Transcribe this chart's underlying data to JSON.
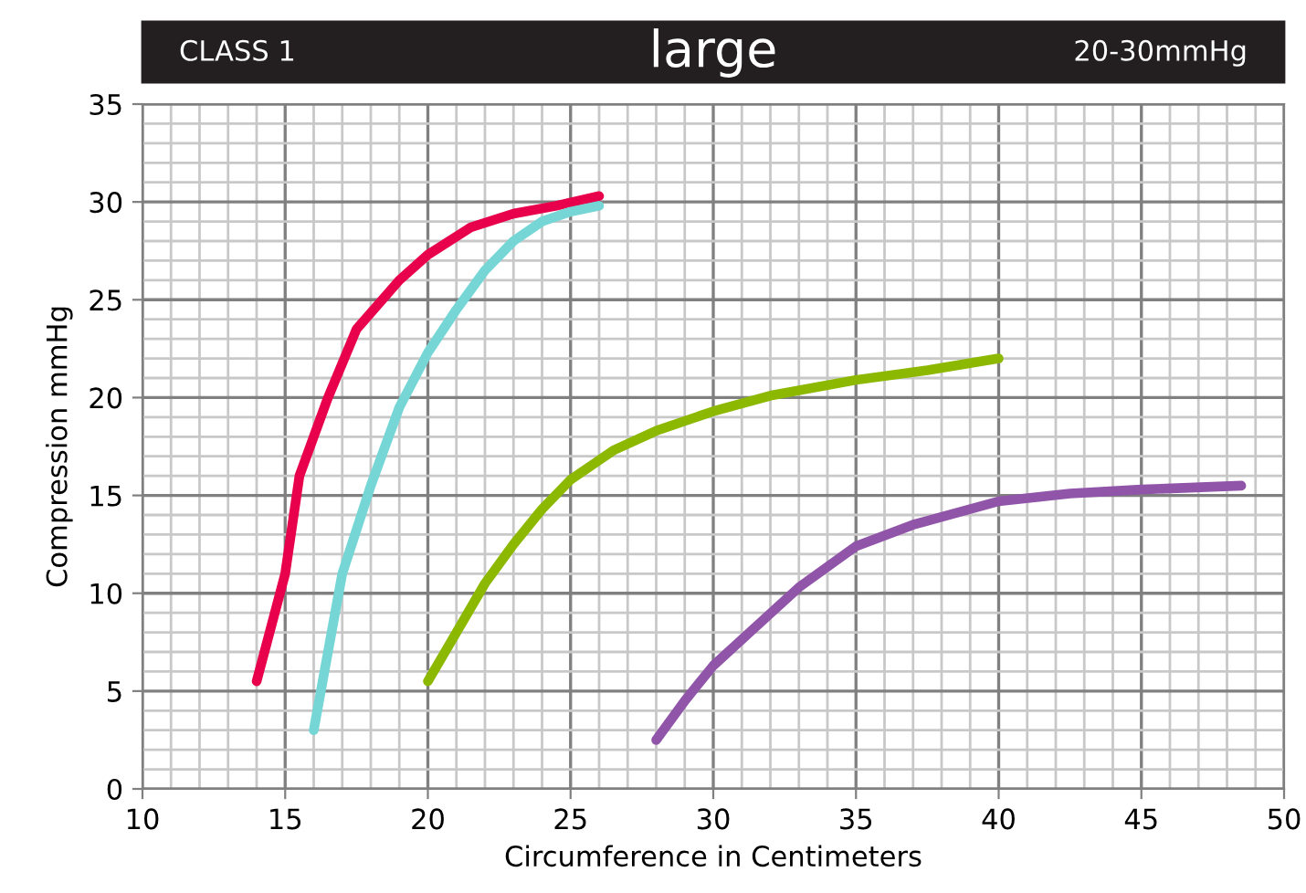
{
  "chart_data": {
    "type": "line",
    "title": "large",
    "annotations": [
      "CLASS 1",
      "20-30mmHg"
    ],
    "xlabel": "Circumference in Centimeters",
    "ylabel": "Compression mmHg",
    "xlim": [
      10,
      50
    ],
    "ylim": [
      0,
      35
    ],
    "xticks": [
      10,
      15,
      20,
      25,
      30,
      35,
      40,
      45,
      50
    ],
    "yticks": [
      0,
      5,
      10,
      15,
      20,
      25,
      30,
      35
    ],
    "grid": true,
    "legend": false,
    "marker": "none",
    "line_style": "solid",
    "series": [
      {
        "color": "#e8004c",
        "x": [
          14,
          15,
          15.5,
          16.5,
          17.5,
          19,
          20,
          21.5,
          23,
          24.5,
          26
        ],
        "values": [
          5.5,
          11,
          16,
          20,
          23.5,
          26,
          27.3,
          28.7,
          29.4,
          29.8,
          30.3
        ]
      },
      {
        "color": "#76d6d6",
        "x": [
          16,
          16.5,
          17,
          18,
          19,
          20,
          21,
          22,
          23,
          24,
          25,
          26
        ],
        "values": [
          3,
          7,
          11,
          15.5,
          19.5,
          22.3,
          24.5,
          26.5,
          28,
          29,
          29.5,
          29.8
        ]
      },
      {
        "color": "#8cb800",
        "x": [
          20,
          21,
          22,
          23,
          24,
          25,
          26.5,
          28,
          30,
          32,
          35,
          37.5,
          40
        ],
        "values": [
          5.5,
          8,
          10.5,
          12.5,
          14.3,
          15.8,
          17.3,
          18.3,
          19.3,
          20.1,
          20.9,
          21.4,
          22
        ]
      },
      {
        "color": "#9055a8",
        "x": [
          28,
          29,
          30,
          31.5,
          33,
          35,
          37,
          40,
          42.5,
          45,
          48.5
        ],
        "values": [
          2.5,
          4.5,
          6.3,
          8.3,
          10.3,
          12.4,
          13.5,
          14.7,
          15.1,
          15.3,
          15.5
        ]
      }
    ]
  }
}
